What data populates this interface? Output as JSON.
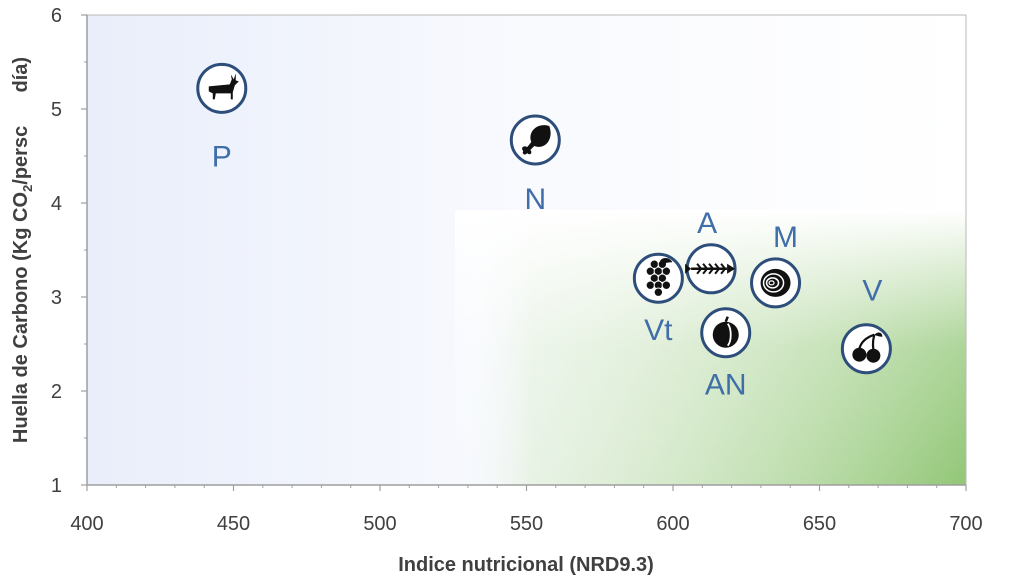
{
  "chart_data": {
    "type": "scatter",
    "title": "",
    "xlabel": "Indice nutricional (NRD9.3)",
    "ylabel_main": "Huella de Carbono (Kg CO",
    "ylabel_sub": "2",
    "ylabel_rest": "/persc      día)",
    "xlim": [
      400,
      700
    ],
    "ylim": [
      1,
      6
    ],
    "xticks": [
      "400",
      "450",
      "500",
      "550",
      "600",
      "650",
      "700"
    ],
    "yticks": [
      "1",
      "2",
      "3",
      "4",
      "5",
      "6"
    ],
    "grid": false,
    "points": [
      {
        "label": "P",
        "icon": "deer-icon",
        "x": 446,
        "y": 5.22
      },
      {
        "label": "N",
        "icon": "chicken-leg-icon",
        "x": 553,
        "y": 4.67
      },
      {
        "label": "A",
        "icon": "fish-skeleton-icon",
        "x": 613,
        "y": 3.3
      },
      {
        "label": "M",
        "icon": "onion-icon",
        "x": 635,
        "y": 3.15
      },
      {
        "label": "Vt",
        "icon": "grapes-icon",
        "x": 595,
        "y": 3.2
      },
      {
        "label": "AN",
        "icon": "fruit-icon",
        "x": 618,
        "y": 2.62
      },
      {
        "label": "V",
        "icon": "cherries-icon",
        "x": 666,
        "y": 2.45
      }
    ],
    "colors": {
      "label": "#3f6ea8",
      "marker_ring": "#2d4d7a",
      "icon": "#111111",
      "bg_top": "#eef2fb",
      "bg_green": "#8dc46e",
      "axis": "#9e9e9e"
    }
  }
}
